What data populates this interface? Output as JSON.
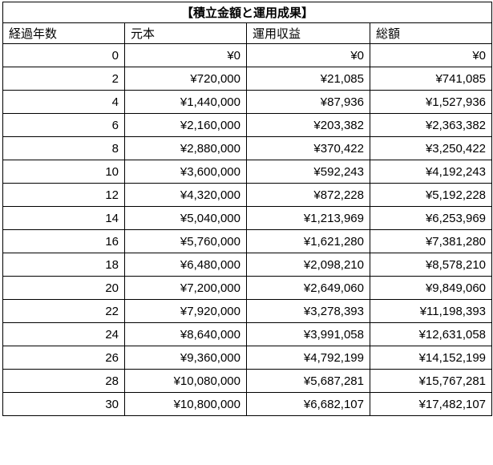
{
  "chart_data": {
    "type": "table",
    "title": "【積立金額と運用成果】",
    "columns": [
      "経過年数",
      "元本",
      "運用収益",
      "総額"
    ],
    "column_keys": [
      "years",
      "principal",
      "gain",
      "total"
    ],
    "rows": [
      [
        "0",
        "¥0",
        "¥0",
        "¥0"
      ],
      [
        "2",
        "¥720,000",
        "¥21,085",
        "¥741,085"
      ],
      [
        "4",
        "¥1,440,000",
        "¥87,936",
        "¥1,527,936"
      ],
      [
        "6",
        "¥2,160,000",
        "¥203,382",
        "¥2,363,382"
      ],
      [
        "8",
        "¥2,880,000",
        "¥370,422",
        "¥3,250,422"
      ],
      [
        "10",
        "¥3,600,000",
        "¥592,243",
        "¥4,192,243"
      ],
      [
        "12",
        "¥4,320,000",
        "¥872,228",
        "¥5,192,228"
      ],
      [
        "14",
        "¥5,040,000",
        "¥1,213,969",
        "¥6,253,969"
      ],
      [
        "16",
        "¥5,760,000",
        "¥1,621,280",
        "¥7,381,280"
      ],
      [
        "18",
        "¥6,480,000",
        "¥2,098,210",
        "¥8,578,210"
      ],
      [
        "20",
        "¥7,200,000",
        "¥2,649,060",
        "¥9,849,060"
      ],
      [
        "22",
        "¥7,920,000",
        "¥3,278,393",
        "¥11,198,393"
      ],
      [
        "24",
        "¥8,640,000",
        "¥3,991,058",
        "¥12,631,058"
      ],
      [
        "26",
        "¥9,360,000",
        "¥4,792,199",
        "¥14,152,199"
      ],
      [
        "28",
        "¥10,080,000",
        "¥5,687,281",
        "¥15,767,281"
      ],
      [
        "30",
        "¥10,800,000",
        "¥6,682,107",
        "¥17,482,107"
      ]
    ],
    "colors": {
      "border": "#000000",
      "background": "#ffffff",
      "text": "#000000"
    }
  }
}
